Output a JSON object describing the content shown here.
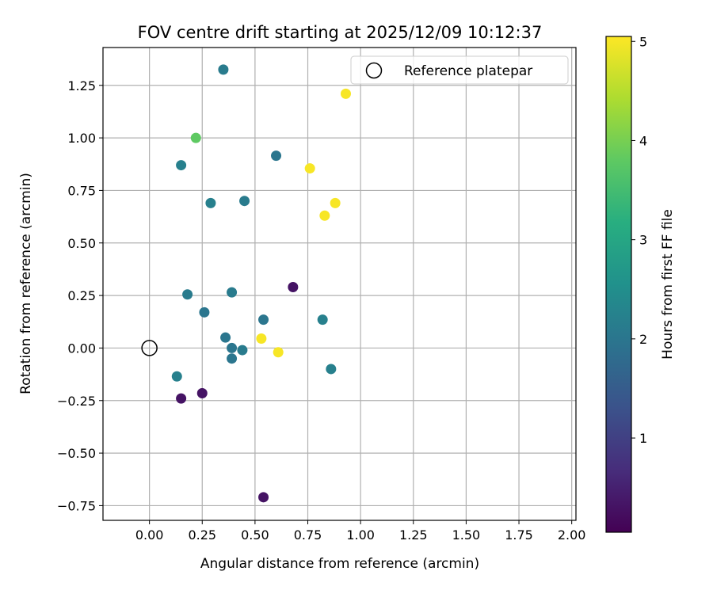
{
  "chart_data": {
    "type": "scatter",
    "title": "FOV centre drift starting at 2025/12/09 10:12:37",
    "xlabel": "Angular distance from reference (arcmin)",
    "ylabel": "Rotation from reference (arcmin)",
    "xlim": [
      -0.22,
      2.02
    ],
    "ylim": [
      -0.82,
      1.43
    ],
    "xticks": [
      0.0,
      0.25,
      0.5,
      0.75,
      1.0,
      1.25,
      1.5,
      1.75,
      2.0
    ],
    "xtick_labels": [
      "0.00",
      "0.25",
      "0.50",
      "0.75",
      "1.00",
      "1.25",
      "1.50",
      "1.75",
      "2.00"
    ],
    "yticks": [
      -0.75,
      -0.5,
      -0.25,
      0.0,
      0.25,
      0.5,
      0.75,
      1.0,
      1.25
    ],
    "ytick_labels": [
      "−0.75",
      "−0.50",
      "−0.25",
      "0.00",
      "0.25",
      "0.50",
      "0.75",
      "1.00",
      "1.25"
    ],
    "grid": true,
    "legend": {
      "position": "top-right",
      "label": "Reference platepar"
    },
    "reference_point": {
      "x": 0.0,
      "y": 0.0,
      "style": "hollow-circle"
    },
    "colorbar": {
      "label": "Hours from first FF file",
      "colormap": "viridis",
      "range": [
        0.05,
        5.05
      ],
      "ticks": [
        1,
        2,
        3,
        4,
        5
      ],
      "tick_labels": [
        "1",
        "2",
        "3",
        "4",
        "5"
      ]
    },
    "points": [
      {
        "x": 0.35,
        "y": 1.325,
        "hours": 2.1
      },
      {
        "x": 0.93,
        "y": 1.21,
        "hours": 5.0
      },
      {
        "x": 0.22,
        "y": 1.0,
        "hours": 3.8
      },
      {
        "x": 0.6,
        "y": 0.915,
        "hours": 2.0
      },
      {
        "x": 0.15,
        "y": 0.87,
        "hours": 2.2
      },
      {
        "x": 0.76,
        "y": 0.855,
        "hours": 5.0
      },
      {
        "x": 0.45,
        "y": 0.7,
        "hours": 2.1
      },
      {
        "x": 0.29,
        "y": 0.69,
        "hours": 2.2
      },
      {
        "x": 0.88,
        "y": 0.69,
        "hours": 5.0
      },
      {
        "x": 0.83,
        "y": 0.63,
        "hours": 5.0
      },
      {
        "x": 0.68,
        "y": 0.29,
        "hours": 0.3
      },
      {
        "x": 0.39,
        "y": 0.265,
        "hours": 2.1
      },
      {
        "x": 0.18,
        "y": 0.255,
        "hours": 2.1
      },
      {
        "x": 0.26,
        "y": 0.17,
        "hours": 2.0
      },
      {
        "x": 0.54,
        "y": 0.135,
        "hours": 2.0
      },
      {
        "x": 0.82,
        "y": 0.135,
        "hours": 2.2
      },
      {
        "x": 0.36,
        "y": 0.05,
        "hours": 2.0
      },
      {
        "x": 0.53,
        "y": 0.045,
        "hours": 5.0
      },
      {
        "x": 0.39,
        "y": 0.0,
        "hours": 2.0
      },
      {
        "x": 0.44,
        "y": -0.01,
        "hours": 2.1
      },
      {
        "x": 0.61,
        "y": -0.02,
        "hours": 5.0
      },
      {
        "x": 0.39,
        "y": -0.05,
        "hours": 2.0
      },
      {
        "x": 0.86,
        "y": -0.1,
        "hours": 2.2
      },
      {
        "x": 0.13,
        "y": -0.135,
        "hours": 2.2
      },
      {
        "x": 0.25,
        "y": -0.215,
        "hours": 0.3
      },
      {
        "x": 0.15,
        "y": -0.24,
        "hours": 0.3
      },
      {
        "x": 0.54,
        "y": -0.71,
        "hours": 0.3
      }
    ]
  }
}
